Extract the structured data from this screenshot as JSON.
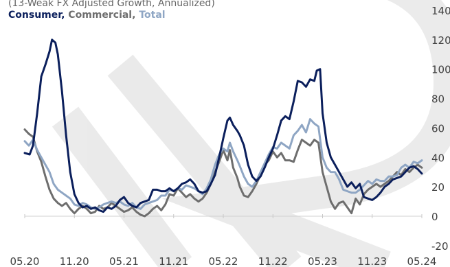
{
  "chart_data": {
    "type": "line",
    "subtitle": "(13-Weak FX Adjusted Growth, Annualized)",
    "legend_title": {
      "parts": [
        {
          "text": "Consumer",
          "color": "#0b1f5c"
        },
        {
          "text": ", ",
          "color": "#0b1f5c"
        },
        {
          "text": "Commercial",
          "color": "#6e6e6e"
        },
        {
          "text": ", ",
          "color": "#6e6e6e"
        },
        {
          "text": "Total",
          "color": "#8fa6c4"
        }
      ]
    },
    "x_tick_labels": [
      "05.20",
      "11.20",
      "05.21",
      "11.21",
      "05.22",
      "11.22",
      "05.23",
      "11.23",
      "05.24"
    ],
    "x_tick_index": [
      0,
      6,
      12,
      18,
      24,
      30,
      36,
      42,
      48
    ],
    "y_tick_labels": [
      "-20",
      "0",
      "20",
      "40",
      "60",
      "80",
      "100",
      "120",
      "140"
    ],
    "ylim": [
      -20,
      140
    ],
    "x_index_range": [
      0,
      48
    ],
    "series": [
      {
        "name": "Consumer",
        "color": "#0b1f5c",
        "width": 3,
        "points": [
          [
            0,
            43
          ],
          [
            0.6,
            42
          ],
          [
            1,
            48
          ],
          [
            1.5,
            70
          ],
          [
            2,
            95
          ],
          [
            2.5,
            103
          ],
          [
            3,
            112
          ],
          [
            3.3,
            120
          ],
          [
            3.7,
            118
          ],
          [
            4,
            110
          ],
          [
            4.5,
            85
          ],
          [
            5,
            55
          ],
          [
            5.5,
            30
          ],
          [
            6,
            15
          ],
          [
            6.5,
            9
          ],
          [
            7,
            6
          ],
          [
            7.5,
            7
          ],
          [
            8,
            5
          ],
          [
            8.5,
            6
          ],
          [
            9,
            4
          ],
          [
            9.5,
            3
          ],
          [
            10,
            6
          ],
          [
            10.5,
            5
          ],
          [
            11,
            7
          ],
          [
            11.5,
            11
          ],
          [
            12,
            13
          ],
          [
            12.5,
            9
          ],
          [
            13,
            7
          ],
          [
            13.5,
            6
          ],
          [
            14,
            9
          ],
          [
            14.5,
            10
          ],
          [
            15,
            11
          ],
          [
            15.5,
            18
          ],
          [
            16,
            18
          ],
          [
            16.5,
            17
          ],
          [
            17,
            17
          ],
          [
            17.5,
            19
          ],
          [
            18,
            17
          ],
          [
            18.5,
            19
          ],
          [
            19,
            22
          ],
          [
            19.5,
            23
          ],
          [
            20,
            25
          ],
          [
            20.5,
            22
          ],
          [
            21,
            17
          ],
          [
            21.5,
            16
          ],
          [
            22,
            17
          ],
          [
            22.5,
            22
          ],
          [
            23,
            28
          ],
          [
            23.5,
            40
          ],
          [
            24,
            53
          ],
          [
            24.5,
            65
          ],
          [
            24.8,
            67
          ],
          [
            25.2,
            62
          ],
          [
            25.7,
            58
          ],
          [
            26,
            55
          ],
          [
            26.5,
            48
          ],
          [
            27,
            35
          ],
          [
            27.5,
            27
          ],
          [
            28,
            24
          ],
          [
            28.5,
            27
          ],
          [
            29,
            33
          ],
          [
            29.5,
            40
          ],
          [
            30,
            46
          ],
          [
            30.5,
            55
          ],
          [
            31,
            65
          ],
          [
            31.5,
            68
          ],
          [
            32,
            66
          ],
          [
            32.5,
            78
          ],
          [
            33,
            92
          ],
          [
            33.5,
            91
          ],
          [
            34,
            88
          ],
          [
            34.5,
            93
          ],
          [
            35,
            92
          ],
          [
            35.3,
            99
          ],
          [
            35.7,
            100
          ],
          [
            36,
            70
          ],
          [
            36.5,
            50
          ],
          [
            37,
            40
          ],
          [
            37.5,
            35
          ],
          [
            38,
            30
          ],
          [
            38.5,
            25
          ],
          [
            39,
            20
          ],
          [
            39.5,
            23
          ],
          [
            40,
            19
          ],
          [
            40.5,
            22
          ],
          [
            41,
            13
          ],
          [
            41.5,
            12
          ],
          [
            42,
            11
          ],
          [
            42.5,
            13
          ],
          [
            43,
            16
          ],
          [
            43.5,
            20
          ],
          [
            44,
            22
          ],
          [
            44.5,
            25
          ],
          [
            45,
            26
          ],
          [
            45.5,
            27
          ],
          [
            46,
            30
          ],
          [
            46.5,
            33
          ],
          [
            47,
            34
          ],
          [
            47.5,
            32
          ],
          [
            48,
            29
          ]
        ]
      },
      {
        "name": "Commercial",
        "color": "#6e6e6e",
        "width": 3,
        "points": [
          [
            0,
            59
          ],
          [
            0.5,
            56
          ],
          [
            1,
            54
          ],
          [
            1.5,
            44
          ],
          [
            2,
            37
          ],
          [
            2.5,
            27
          ],
          [
            3,
            18
          ],
          [
            3.5,
            12
          ],
          [
            4,
            9
          ],
          [
            4.5,
            7
          ],
          [
            5,
            9
          ],
          [
            5.5,
            5
          ],
          [
            6,
            2
          ],
          [
            6.5,
            5
          ],
          [
            7,
            7
          ],
          [
            7.5,
            5
          ],
          [
            8,
            2
          ],
          [
            8.5,
            3
          ],
          [
            9,
            7
          ],
          [
            9.5,
            5
          ],
          [
            10,
            6
          ],
          [
            10.5,
            9
          ],
          [
            11,
            7
          ],
          [
            11.5,
            5
          ],
          [
            12,
            3
          ],
          [
            12.5,
            4
          ],
          [
            13,
            6
          ],
          [
            13.5,
            3
          ],
          [
            14,
            1
          ],
          [
            14.5,
            0
          ],
          [
            15,
            2
          ],
          [
            15.5,
            5
          ],
          [
            16,
            7
          ],
          [
            16.5,
            4
          ],
          [
            17,
            8
          ],
          [
            17.5,
            15
          ],
          [
            18,
            14
          ],
          [
            18.5,
            19
          ],
          [
            19,
            16
          ],
          [
            19.5,
            13
          ],
          [
            20,
            15
          ],
          [
            20.5,
            12
          ],
          [
            21,
            10
          ],
          [
            21.5,
            12
          ],
          [
            22,
            16
          ],
          [
            22.5,
            22
          ],
          [
            23,
            30
          ],
          [
            23.5,
            37
          ],
          [
            24,
            45
          ],
          [
            24.5,
            38
          ],
          [
            24.8,
            45
          ],
          [
            25.2,
            33
          ],
          [
            25.7,
            26
          ],
          [
            26,
            20
          ],
          [
            26.5,
            14
          ],
          [
            27,
            13
          ],
          [
            27.5,
            17
          ],
          [
            28,
            22
          ],
          [
            28.5,
            28
          ],
          [
            29,
            35
          ],
          [
            29.5,
            38
          ],
          [
            30,
            44
          ],
          [
            30.5,
            40
          ],
          [
            31,
            43
          ],
          [
            31.5,
            38
          ],
          [
            32,
            38
          ],
          [
            32.5,
            37
          ],
          [
            33,
            45
          ],
          [
            33.5,
            52
          ],
          [
            34,
            50
          ],
          [
            34.5,
            48
          ],
          [
            35,
            52
          ],
          [
            35.5,
            50
          ],
          [
            36,
            30
          ],
          [
            36.5,
            20
          ],
          [
            37,
            10
          ],
          [
            37.5,
            5
          ],
          [
            38,
            9
          ],
          [
            38.5,
            10
          ],
          [
            39,
            6
          ],
          [
            39.5,
            2
          ],
          [
            40,
            12
          ],
          [
            40.5,
            8
          ],
          [
            41,
            15
          ],
          [
            41.5,
            18
          ],
          [
            42,
            20
          ],
          [
            42.5,
            22
          ],
          [
            43,
            20
          ],
          [
            43.5,
            22
          ],
          [
            44,
            24
          ],
          [
            44.5,
            27
          ],
          [
            45,
            30
          ],
          [
            45.5,
            28
          ],
          [
            46,
            32
          ],
          [
            46.5,
            30
          ],
          [
            47,
            33
          ],
          [
            47.5,
            35
          ],
          [
            48,
            33
          ]
        ]
      },
      {
        "name": "Total",
        "color": "#8fa6c4",
        "width": 3,
        "points": [
          [
            0,
            51
          ],
          [
            0.5,
            48
          ],
          [
            1,
            52
          ],
          [
            1.5,
            45
          ],
          [
            2,
            40
          ],
          [
            2.5,
            35
          ],
          [
            3,
            30
          ],
          [
            3.5,
            22
          ],
          [
            4,
            18
          ],
          [
            4.5,
            16
          ],
          [
            5,
            14
          ],
          [
            5.5,
            12
          ],
          [
            6,
            8
          ],
          [
            6.5,
            7
          ],
          [
            7,
            9
          ],
          [
            7.5,
            8
          ],
          [
            8,
            6
          ],
          [
            8.5,
            5
          ],
          [
            9,
            6
          ],
          [
            9.5,
            8
          ],
          [
            10,
            9
          ],
          [
            10.5,
            10
          ],
          [
            11,
            9
          ],
          [
            11.5,
            10
          ],
          [
            12,
            8
          ],
          [
            12.5,
            7
          ],
          [
            13,
            9
          ],
          [
            13.5,
            6
          ],
          [
            14,
            5
          ],
          [
            14.5,
            8
          ],
          [
            15,
            9
          ],
          [
            15.5,
            10
          ],
          [
            16,
            11
          ],
          [
            16.5,
            14
          ],
          [
            17,
            14
          ],
          [
            17.5,
            18
          ],
          [
            18,
            17
          ],
          [
            18.5,
            19
          ],
          [
            19,
            18
          ],
          [
            19.5,
            21
          ],
          [
            20,
            20
          ],
          [
            20.5,
            19
          ],
          [
            21,
            17
          ],
          [
            21.5,
            15
          ],
          [
            22,
            19
          ],
          [
            22.5,
            25
          ],
          [
            23,
            35
          ],
          [
            23.5,
            42
          ],
          [
            24,
            46
          ],
          [
            24.5,
            44
          ],
          [
            24.8,
            50
          ],
          [
            25.2,
            44
          ],
          [
            25.7,
            38
          ],
          [
            26,
            34
          ],
          [
            26.5,
            27
          ],
          [
            27,
            22
          ],
          [
            27.5,
            20
          ],
          [
            28,
            24
          ],
          [
            28.5,
            30
          ],
          [
            29,
            36
          ],
          [
            29.5,
            42
          ],
          [
            30,
            47
          ],
          [
            30.5,
            46
          ],
          [
            31,
            50
          ],
          [
            31.5,
            48
          ],
          [
            32,
            46
          ],
          [
            32.5,
            55
          ],
          [
            33,
            58
          ],
          [
            33.5,
            62
          ],
          [
            34,
            57
          ],
          [
            34.5,
            66
          ],
          [
            35,
            63
          ],
          [
            35.5,
            61
          ],
          [
            36,
            40
          ],
          [
            36.5,
            33
          ],
          [
            37,
            30
          ],
          [
            37.5,
            30
          ],
          [
            38,
            25
          ],
          [
            38.5,
            18
          ],
          [
            39,
            17
          ],
          [
            39.5,
            16
          ],
          [
            40,
            16
          ],
          [
            40.5,
            18
          ],
          [
            41,
            21
          ],
          [
            41.5,
            24
          ],
          [
            42,
            22
          ],
          [
            42.5,
            25
          ],
          [
            43,
            24
          ],
          [
            43.5,
            24
          ],
          [
            44,
            27
          ],
          [
            44.5,
            27
          ],
          [
            45,
            28
          ],
          [
            45.5,
            33
          ],
          [
            46,
            35
          ],
          [
            46.5,
            33
          ],
          [
            47,
            37
          ],
          [
            47.5,
            36
          ],
          [
            48,
            38
          ]
        ]
      }
    ]
  }
}
